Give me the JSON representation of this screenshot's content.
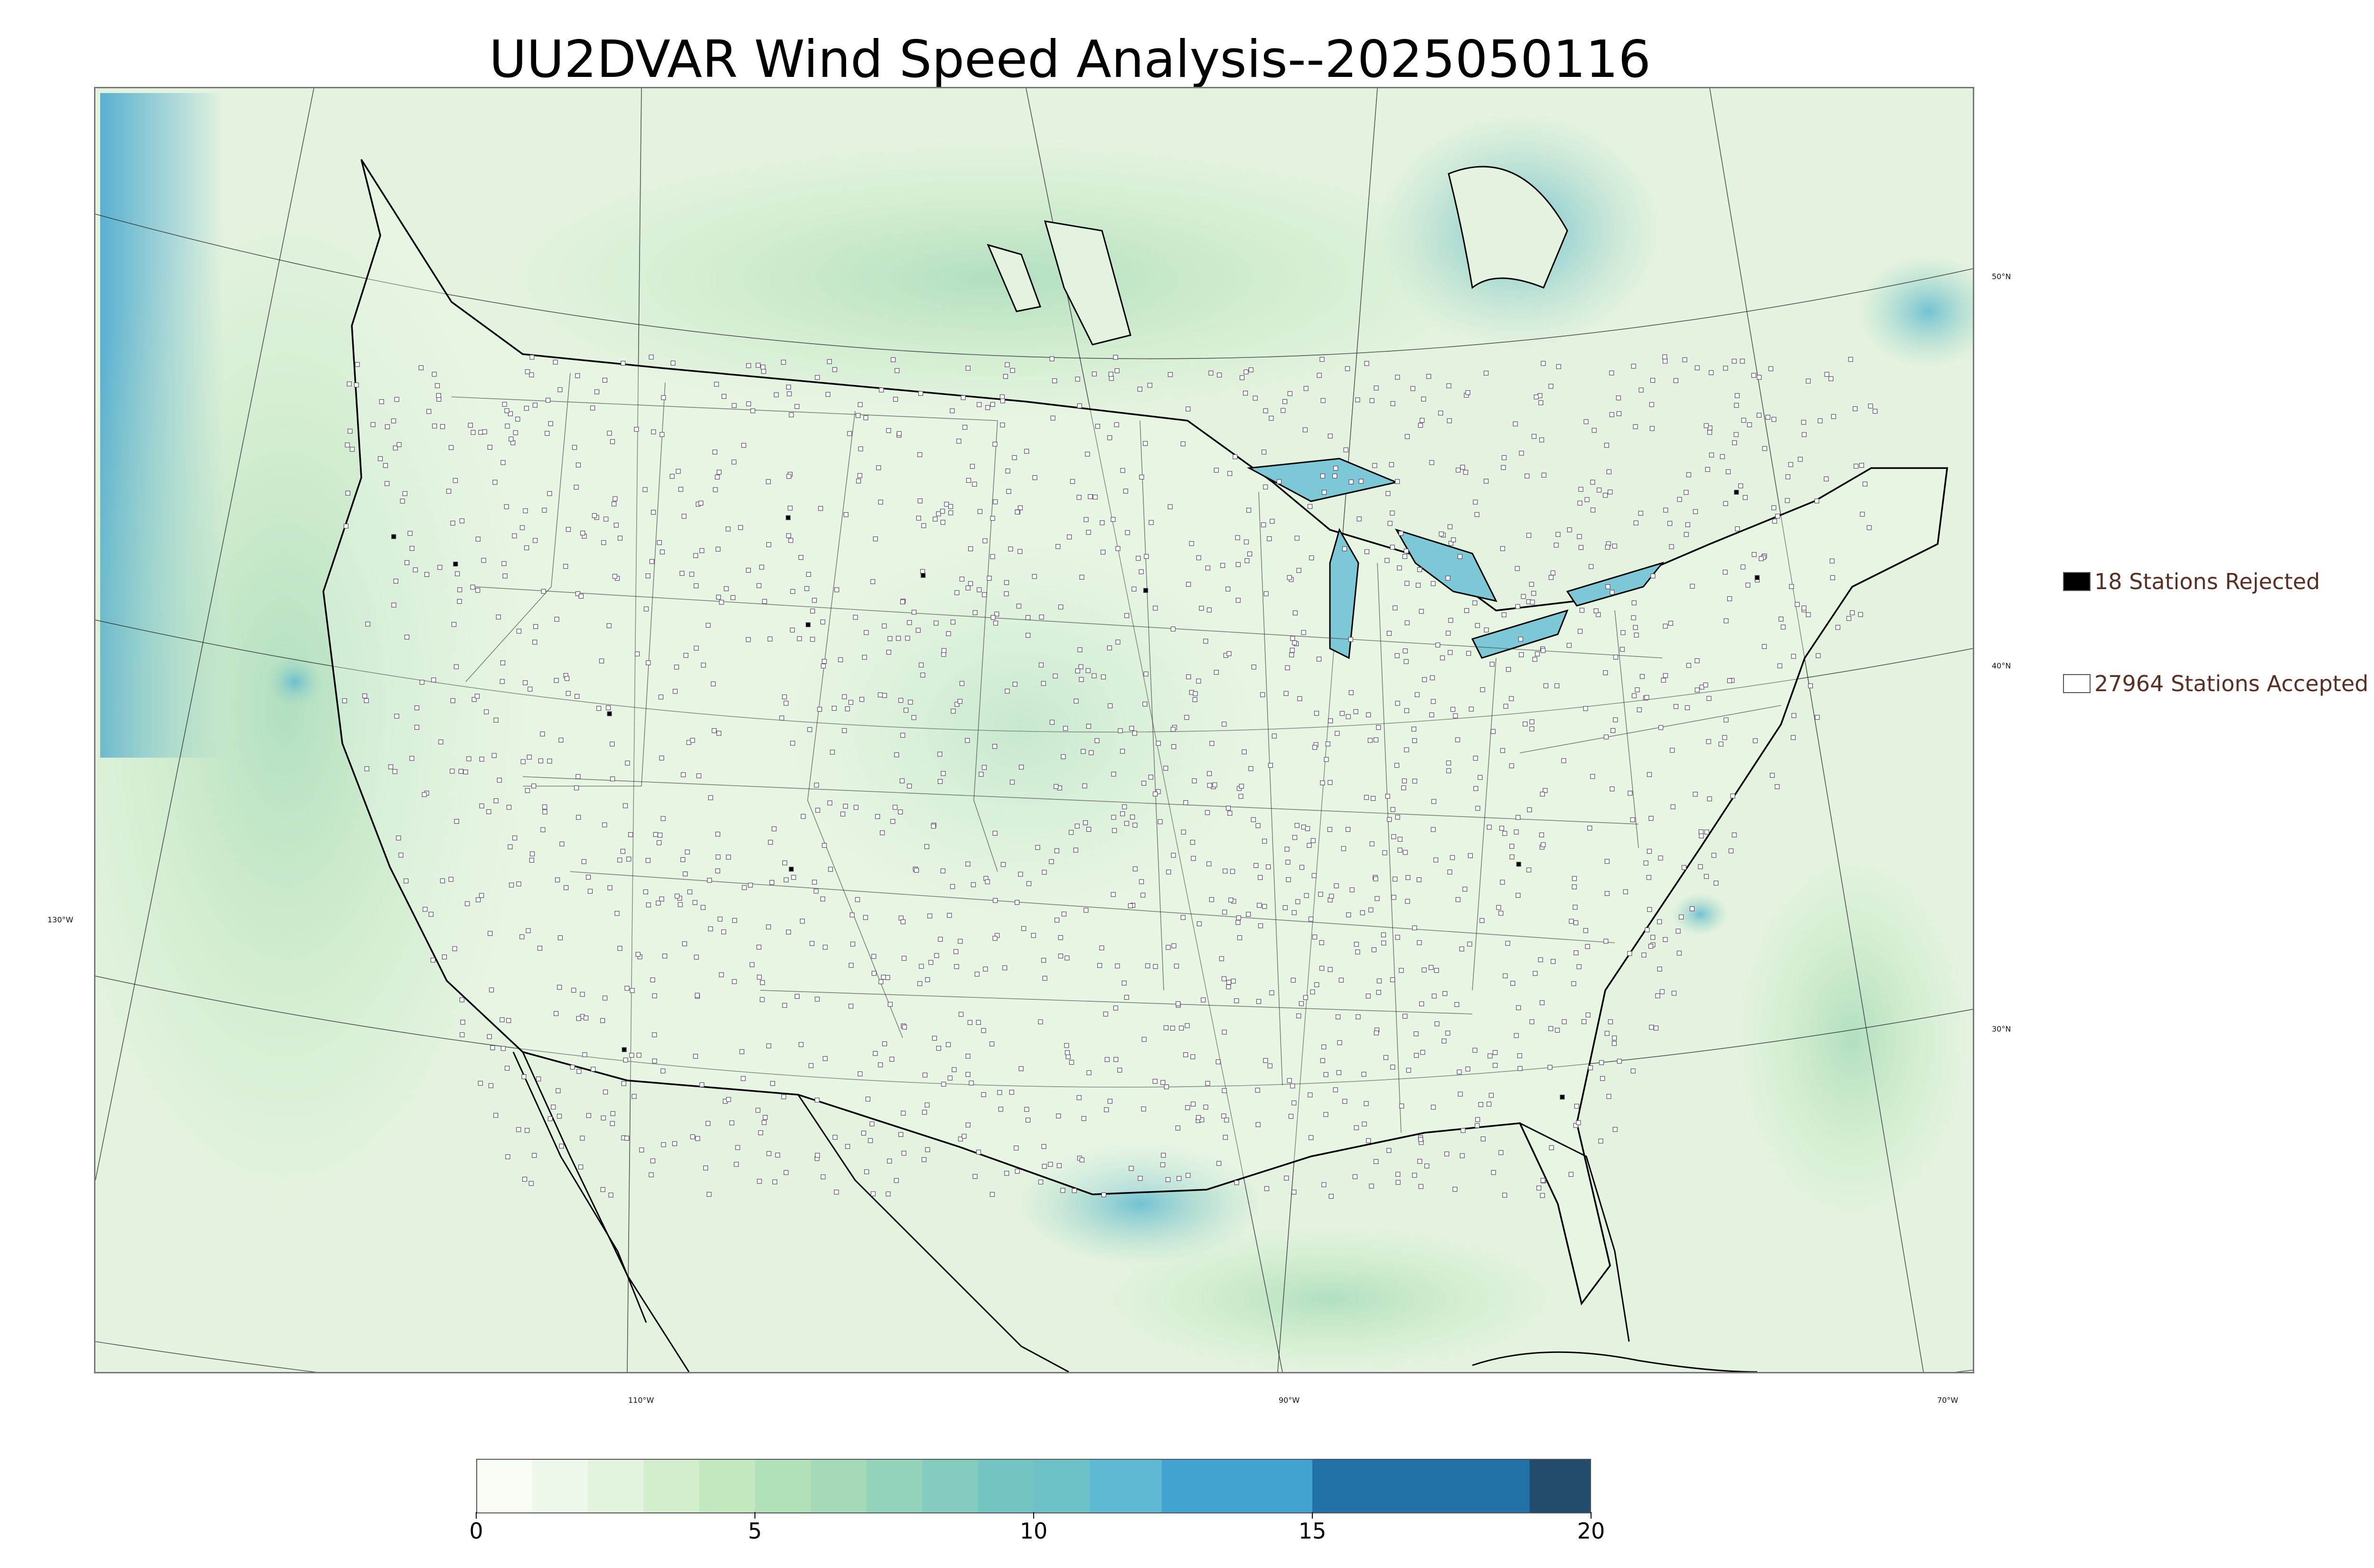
{
  "title": "UU2DVAR Wind Speed Analysis--2025050116",
  "map": {
    "projection": "lambert-conformal",
    "field": "wind speed",
    "lat_labels": [
      "50°N",
      "40°N",
      "30°N"
    ],
    "lon_labels": [
      "130°W",
      "110°W",
      "90°W",
      "70°W"
    ]
  },
  "legend": {
    "rejected": {
      "label": "18 Stations Rejected",
      "swatch_color": "#000000"
    },
    "accepted": {
      "label": "27964 Stations Accepted",
      "swatch_color": "#ffffff"
    }
  },
  "colorbar": {
    "ticks": [
      "0",
      "5",
      "10",
      "15",
      "20"
    ],
    "bins": [
      {
        "from": 0,
        "to": 1,
        "color": "#f7fcf5"
      },
      {
        "from": 1,
        "to": 2,
        "color": "#eef8ea"
      },
      {
        "from": 2,
        "to": 3,
        "color": "#e3f4de"
      },
      {
        "from": 3,
        "to": 4,
        "color": "#d3eecd"
      },
      {
        "from": 4,
        "to": 5,
        "color": "#c3e8c0"
      },
      {
        "from": 5,
        "to": 6,
        "color": "#b2e1b7"
      },
      {
        "from": 6,
        "to": 7,
        "color": "#a4dab8"
      },
      {
        "from": 7,
        "to": 8,
        "color": "#93d3ba"
      },
      {
        "from": 8,
        "to": 9,
        "color": "#83ccbd"
      },
      {
        "from": 9,
        "to": 10,
        "color": "#74c4c3"
      },
      {
        "from": 10,
        "to": 11,
        "color": "#6fc1c8"
      },
      {
        "from": 11,
        "to": 12.3,
        "color": "#5fb9d2"
      },
      {
        "from": 12.3,
        "to": 15,
        "color": "#42a2d0"
      },
      {
        "from": 15,
        "to": 18.9,
        "color": "#2170a6"
      },
      {
        "from": 18.9,
        "to": 20,
        "color": "#234b6c"
      }
    ]
  }
}
